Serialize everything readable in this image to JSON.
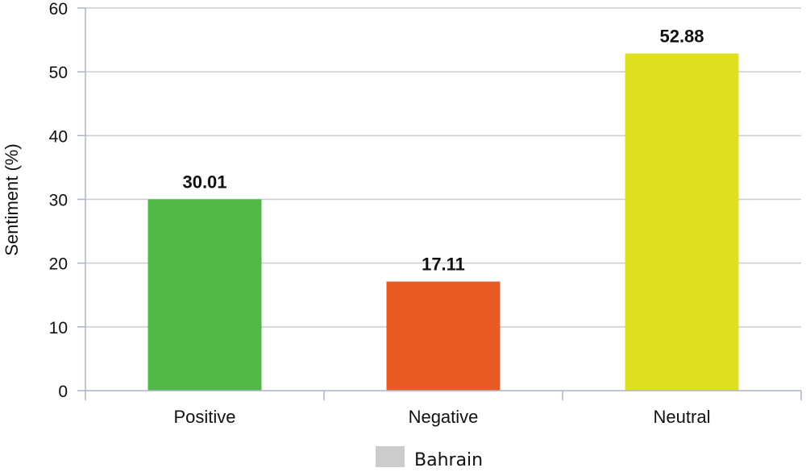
{
  "chart_data": {
    "type": "bar",
    "title": "",
    "xlabel": "",
    "ylabel": "Sentiment (%)",
    "ylim": [
      0,
      60
    ],
    "yticks": [
      0,
      10,
      20,
      30,
      40,
      50,
      60
    ],
    "categories": [
      "Positive",
      "Negative",
      "Neutral"
    ],
    "values": [
      30.01,
      17.11,
      52.88
    ],
    "value_labels": [
      "30.01",
      "17.11",
      "52.88"
    ],
    "bar_colors": [
      "#52b848",
      "#ea5a25",
      "#dfe020"
    ],
    "grid": true,
    "legend": {
      "placement": "bottom-center",
      "label": "Bahrain",
      "swatch_color": "#cccccc"
    }
  },
  "colors": {
    "grid": "#cccccc",
    "axis": "#aab4c8"
  }
}
